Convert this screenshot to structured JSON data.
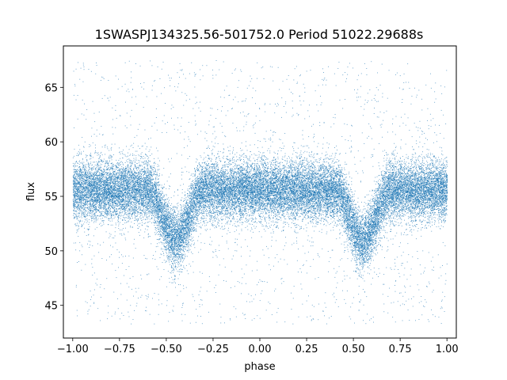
{
  "chart_data": {
    "type": "scatter",
    "title": "1SWASPJ134325.56-501752.0 Period 51022.29688s",
    "xlabel": "phase",
    "ylabel": "flux",
    "xlim": [
      -1.05,
      1.05
    ],
    "ylim": [
      42.0,
      68.8
    ],
    "xticks": [
      -1.0,
      -0.75,
      -0.5,
      -0.25,
      0.0,
      0.25,
      0.5,
      0.75,
      1.0
    ],
    "xtick_labels": [
      "−1.00",
      "−0.75",
      "−0.50",
      "−0.25",
      "0.00",
      "0.25",
      "0.50",
      "0.75",
      "1.00"
    ],
    "yticks": [
      45,
      50,
      55,
      60,
      65
    ],
    "ytick_labels": [
      "45",
      "50",
      "55",
      "60",
      "65"
    ],
    "grid": false,
    "marker_color": "#1f77b4",
    "series": [
      {
        "phase_range": [
          -1.0,
          1.0
        ],
        "baseline_flux": 55.6,
        "typical_scatter": [
          52.5,
          58.5
        ],
        "outlier_range": [
          43.3,
          67.5
        ],
        "eclipses": [
          {
            "center_phase": -0.45,
            "min_flux": 49.5,
            "width_phase": [
              -0.6,
              -0.3
            ]
          },
          {
            "center_phase": 0.55,
            "min_flux": 49.5,
            "width_phase": [
              0.4,
              0.7
            ]
          }
        ],
        "approx_points": 60000
      }
    ]
  }
}
